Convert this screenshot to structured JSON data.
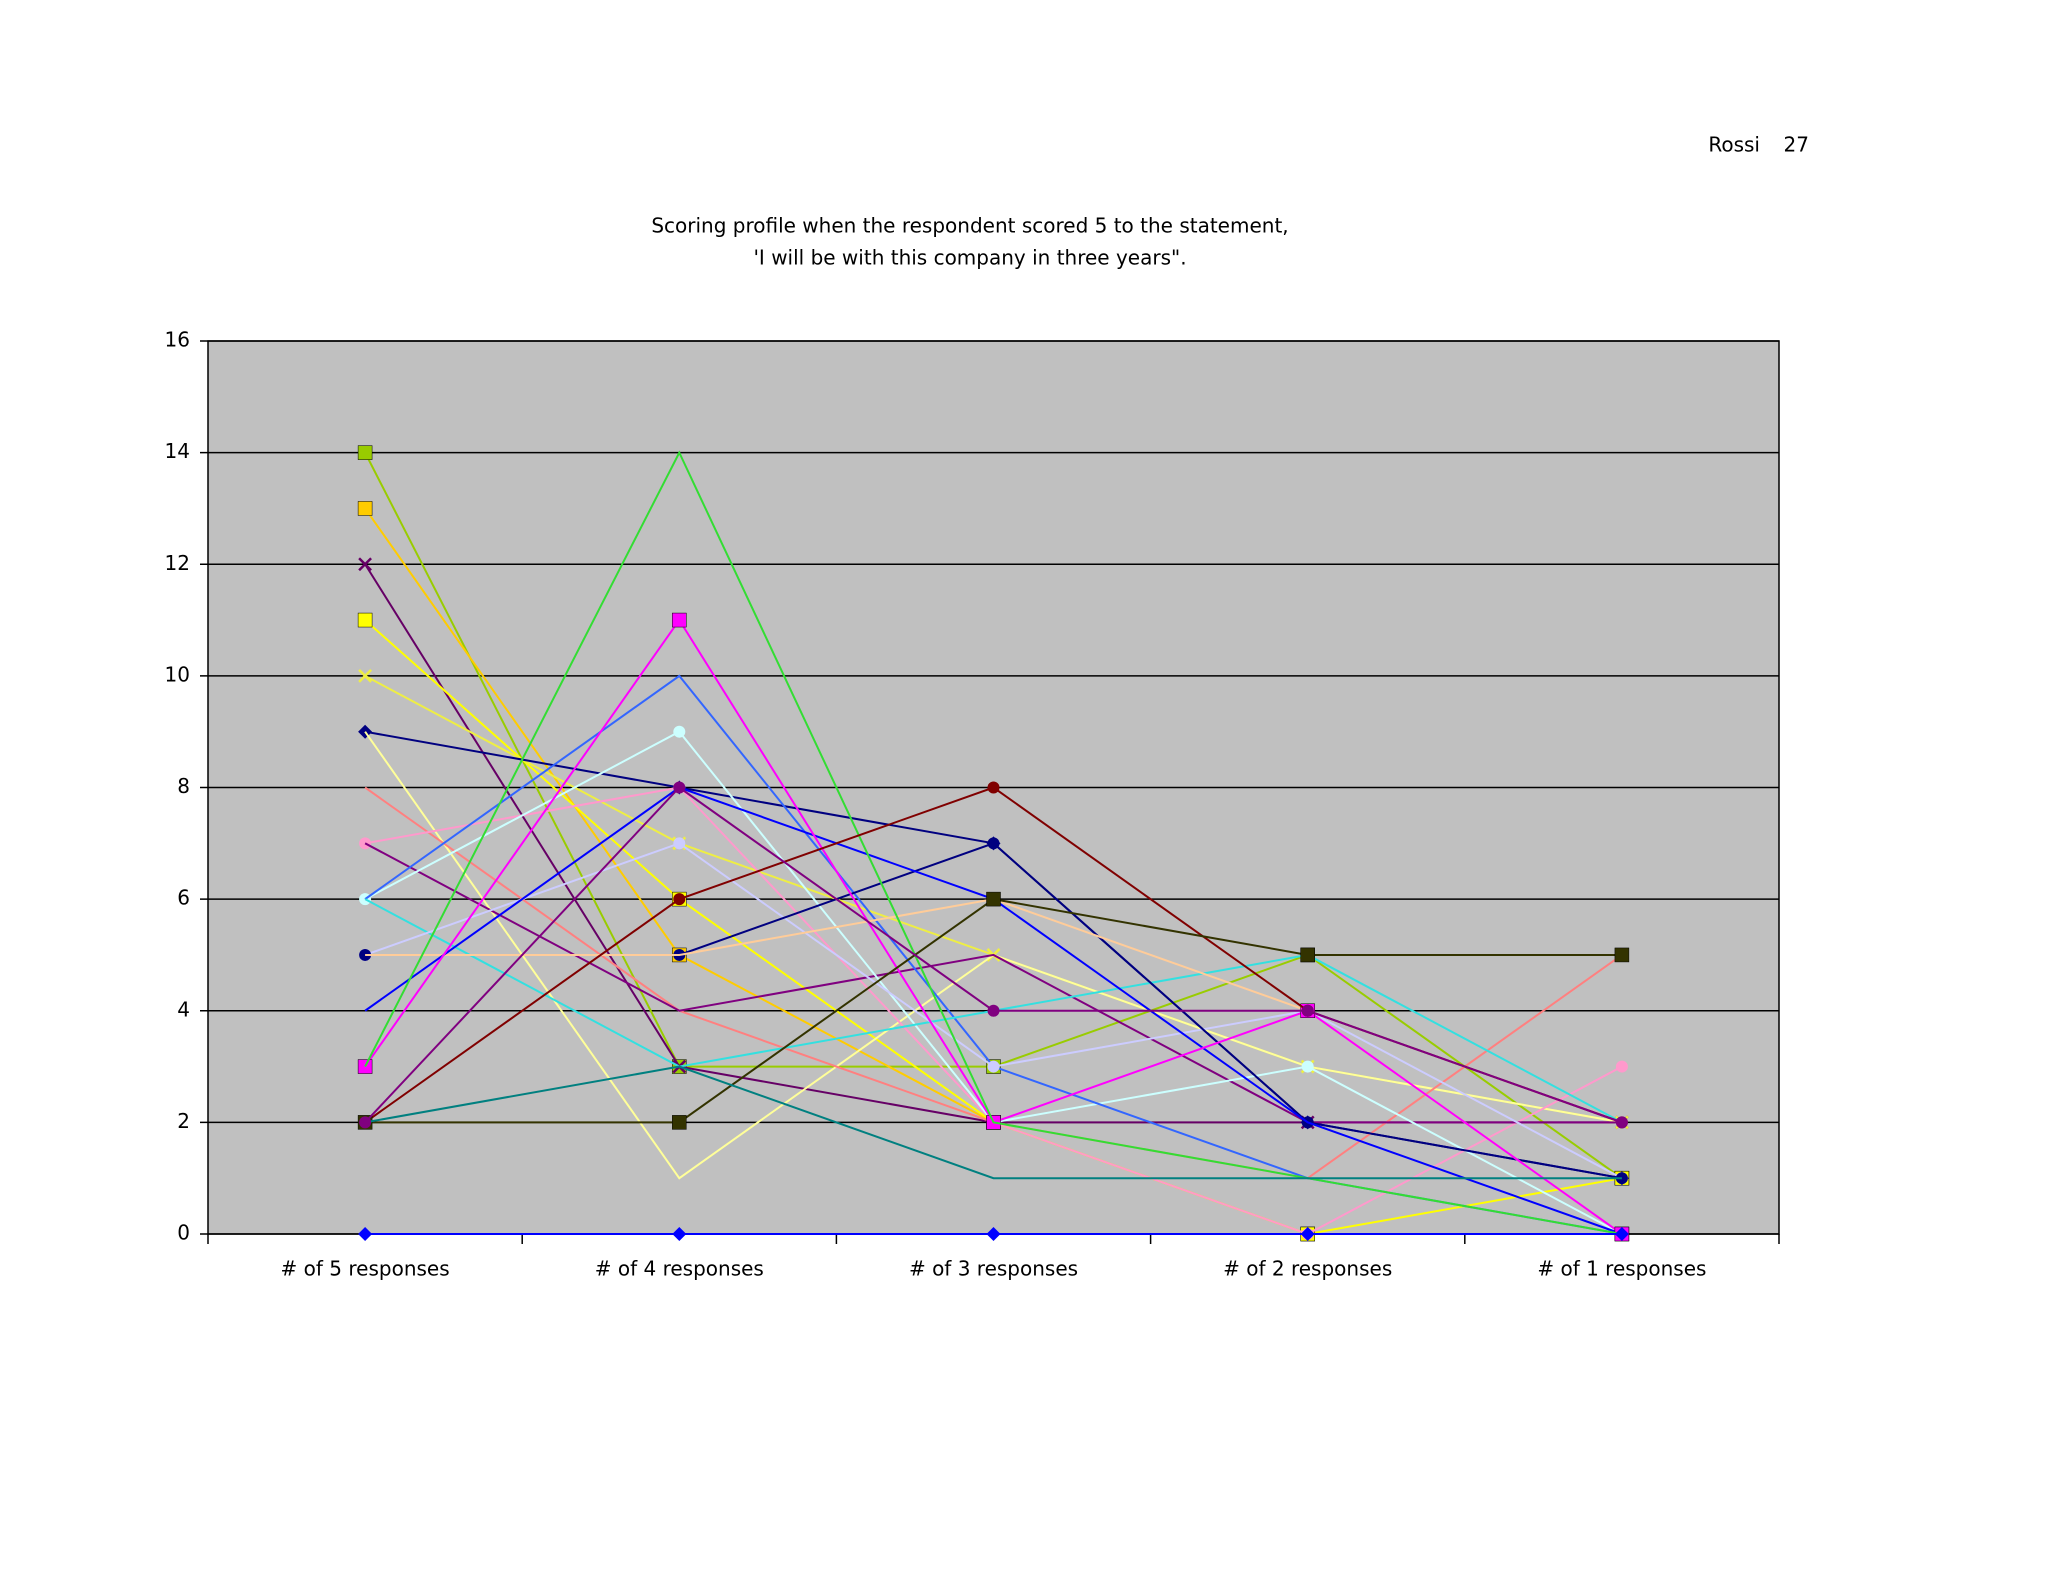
{
  "page": {
    "author": "Rossi",
    "number": 27
  },
  "chart_data": {
    "type": "line",
    "title": [
      "Scoring profile when the respondent scored 5 to the statement,",
      "'I will be with this company in three years\"."
    ],
    "categories": [
      "# of 5 responses",
      "# of 4 responses",
      "# of 3 responses",
      "# of 2 responses",
      "# of 1 responses"
    ],
    "ylim": [
      0,
      16
    ],
    "yticks": [
      0,
      2,
      4,
      6,
      8,
      10,
      12,
      14,
      16
    ],
    "grid": true,
    "background": "#c0c0c0",
    "series": [
      {
        "color": "#99cc00",
        "marker": "square",
        "values": [
          14,
          3,
          3,
          5,
          1
        ]
      },
      {
        "color": "#ffcc00",
        "marker": "square",
        "values": [
          13,
          5,
          2,
          0,
          0
        ]
      },
      {
        "color": "#660066",
        "marker": "x",
        "values": [
          12,
          3,
          2,
          2,
          2
        ]
      },
      {
        "color": "#ffff00",
        "marker": "square",
        "values": [
          11,
          6,
          2,
          0,
          1
        ]
      },
      {
        "color": "#eeee44",
        "marker": "x",
        "values": [
          10,
          7,
          5,
          3,
          2
        ]
      },
      {
        "color": "#000080",
        "marker": "diamond",
        "values": [
          9,
          8,
          7,
          2,
          1
        ]
      },
      {
        "color": "#ffff99",
        "marker": "none",
        "values": [
          9,
          1,
          5,
          3,
          2
        ]
      },
      {
        "color": "#ff8080",
        "marker": "none",
        "values": [
          8,
          4,
          2,
          1,
          5
        ]
      },
      {
        "color": "#ff99cc",
        "marker": "circle",
        "values": [
          7,
          8,
          2,
          0,
          3
        ]
      },
      {
        "color": "#800080",
        "marker": "none",
        "values": [
          7,
          4,
          5,
          2,
          2
        ]
      },
      {
        "color": "#ccffff",
        "marker": "circle",
        "values": [
          6,
          9,
          2,
          3,
          0
        ]
      },
      {
        "color": "#3366ff",
        "marker": "none",
        "values": [
          6,
          10,
          3,
          1,
          0
        ]
      },
      {
        "color": "#33e0e0",
        "marker": "none",
        "values": [
          6,
          3,
          4,
          5,
          2
        ]
      },
      {
        "color": "#ccccff",
        "marker": "circle",
        "values": [
          5,
          7,
          3,
          4,
          1
        ]
      },
      {
        "color": "#000080",
        "marker": "circle",
        "values": [
          5,
          5,
          7,
          2,
          1
        ]
      },
      {
        "color": "#ffcc99",
        "marker": "none",
        "values": [
          5,
          5,
          6,
          4,
          0
        ]
      },
      {
        "color": "#0000ff",
        "marker": "none",
        "values": [
          4,
          8,
          6,
          2,
          0
        ]
      },
      {
        "color": "#ff00ff",
        "marker": "square",
        "values": [
          3,
          11,
          2,
          4,
          0
        ]
      },
      {
        "color": "#33dd33",
        "marker": "none",
        "values": [
          3,
          14,
          2,
          1,
          0
        ]
      },
      {
        "color": "#800000",
        "marker": "circle",
        "values": [
          2,
          6,
          8,
          4,
          2
        ]
      },
      {
        "color": "#333300",
        "marker": "square",
        "values": [
          2,
          2,
          6,
          5,
          5
        ]
      },
      {
        "color": "#008080",
        "marker": "none",
        "values": [
          2,
          3,
          1,
          1,
          1
        ]
      },
      {
        "color": "#800080",
        "marker": "circle",
        "values": [
          2,
          8,
          4,
          4,
          2
        ]
      },
      {
        "color": "#0000ff",
        "marker": "diamond",
        "values": [
          0,
          0,
          0,
          0,
          0
        ]
      }
    ]
  }
}
